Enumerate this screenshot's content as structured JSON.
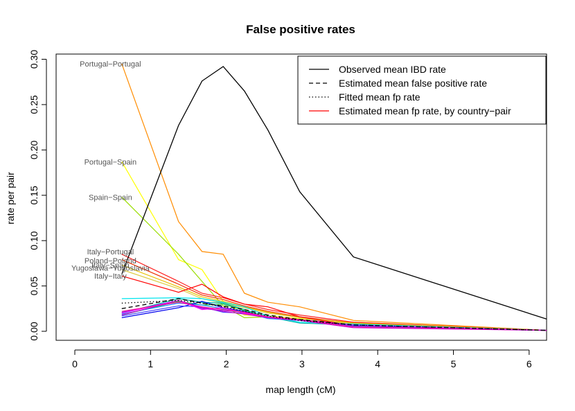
{
  "chart_data": {
    "type": "line",
    "title": "False positive rates",
    "xlabel": "map length (cM)",
    "ylabel": "rate per pair",
    "xlim": [
      0,
      6.25
    ],
    "ylim": [
      0,
      0.3
    ],
    "xticks": [
      "0",
      "1",
      "2",
      "3",
      "4",
      "5",
      "6"
    ],
    "yticks": [
      "0.00",
      "0.05",
      "0.10",
      "0.15",
      "0.20",
      "0.25",
      "0.30"
    ],
    "grid": false,
    "legend_position": "top-right",
    "legend": [
      {
        "label": "Observed mean IBD rate",
        "color": "#000000",
        "dash": "solid"
      },
      {
        "label": "Estimated mean false positive rate",
        "color": "#000000",
        "dash": "dashed"
      },
      {
        "label": "Fitted mean fp rate",
        "color": "#000000",
        "dash": "dotted"
      },
      {
        "label": "Estimated mean fp rate, by country−pair",
        "color": "#ff0000",
        "dash": "solid"
      }
    ],
    "x": [
      0.62,
      1.37,
      1.68,
      1.96,
      2.24,
      2.55,
      2.97,
      3.68,
      6.25
    ],
    "series": [
      {
        "color": "#000000",
        "dash": "solid",
        "values": [
          0.063,
          0.227,
          0.276,
          0.292,
          0.265,
          0.222,
          0.154,
          0.082,
          0.013
        ]
      },
      {
        "color": "#000000",
        "dash": "dashed",
        "values": [
          0.025,
          0.036,
          0.031,
          0.028,
          0.024,
          0.018,
          0.013,
          0.007,
          0.001
        ]
      },
      {
        "color": "#000000",
        "dash": "dotted",
        "values": [
          0.031,
          0.034,
          0.031,
          0.027,
          0.022,
          0.017,
          0.012,
          0.007,
          0.001
        ]
      },
      {
        "color": "#ff8c00",
        "dash": "solid",
        "values": [
          0.295,
          0.121,
          0.088,
          0.085,
          0.042,
          0.032,
          0.027,
          0.012,
          0.001
        ]
      },
      {
        "color": "#ffff00",
        "dash": "solid",
        "values": [
          0.187,
          0.079,
          0.068,
          0.033,
          0.018,
          0.017,
          0.014,
          0.01,
          0.001
        ]
      },
      {
        "color": "#99dd00",
        "dash": "solid",
        "values": [
          0.148,
          0.085,
          0.055,
          0.028,
          0.015,
          0.016,
          0.013,
          0.008,
          0.001
        ]
      },
      {
        "color": "#ff2020",
        "dash": "solid",
        "values": [
          0.085,
          0.055,
          0.042,
          0.037,
          0.03,
          0.024,
          0.018,
          0.01,
          0.001
        ]
      },
      {
        "color": "#ee3300",
        "dash": "solid",
        "values": [
          0.079,
          0.052,
          0.04,
          0.035,
          0.028,
          0.022,
          0.016,
          0.009,
          0.001
        ]
      },
      {
        "color": "#e8c000",
        "dash": "solid",
        "values": [
          0.073,
          0.049,
          0.038,
          0.033,
          0.027,
          0.021,
          0.015,
          0.009,
          0.001
        ]
      },
      {
        "color": "#ddcc44",
        "dash": "solid",
        "values": [
          0.068,
          0.047,
          0.036,
          0.031,
          0.026,
          0.02,
          0.015,
          0.008,
          0.001
        ]
      },
      {
        "color": "#ff0000",
        "dash": "solid",
        "values": [
          0.061,
          0.043,
          0.052,
          0.038,
          0.03,
          0.027,
          0.016,
          0.006,
          0.001
        ]
      },
      {
        "color": "#00e5ee",
        "dash": "solid",
        "values": [
          0.036,
          0.037,
          0.036,
          0.032,
          0.027,
          0.017,
          0.01,
          0.008,
          0.001
        ]
      },
      {
        "color": "#00b3a8",
        "dash": "solid",
        "values": [
          0.02,
          0.036,
          0.032,
          0.031,
          0.024,
          0.016,
          0.009,
          0.007,
          0.001
        ]
      },
      {
        "color": "#20cc40",
        "dash": "solid",
        "values": [
          0.018,
          0.033,
          0.029,
          0.03,
          0.023,
          0.015,
          0.012,
          0.007,
          0.001
        ]
      },
      {
        "color": "#1e90ff",
        "dash": "solid",
        "values": [
          0.019,
          0.031,
          0.029,
          0.025,
          0.021,
          0.014,
          0.012,
          0.006,
          0.001
        ]
      },
      {
        "color": "#0000ee",
        "dash": "solid",
        "values": [
          0.015,
          0.026,
          0.033,
          0.026,
          0.022,
          0.015,
          0.013,
          0.006,
          0.001
        ]
      },
      {
        "color": "#4040ff",
        "dash": "solid",
        "values": [
          0.017,
          0.028,
          0.027,
          0.021,
          0.02,
          0.015,
          0.012,
          0.006,
          0.001
        ]
      },
      {
        "color": "#8a2be2",
        "dash": "solid",
        "values": [
          0.021,
          0.034,
          0.025,
          0.023,
          0.021,
          0.016,
          0.013,
          0.005,
          0.001
        ]
      },
      {
        "color": "#ff00ff",
        "dash": "solid",
        "values": [
          0.02,
          0.034,
          0.024,
          0.026,
          0.02,
          0.016,
          0.013,
          0.007,
          0.001
        ]
      },
      {
        "color": "#ff1493",
        "dash": "solid",
        "values": [
          0.022,
          0.032,
          0.027,
          0.024,
          0.021,
          0.016,
          0.013,
          0.005,
          0.001
        ]
      },
      {
        "color": "#cc00cc",
        "dash": "solid",
        "values": [
          0.018,
          0.034,
          0.026,
          0.022,
          0.019,
          0.015,
          0.012,
          0.004,
          0.001
        ]
      }
    ],
    "annotations": [
      {
        "text": "Portugal−Portugal",
        "x": 0.47,
        "y": 0.295
      },
      {
        "text": "Portugal−Spain",
        "x": 0.47,
        "y": 0.187
      },
      {
        "text": "Spain−Spain",
        "x": 0.47,
        "y": 0.148
      },
      {
        "text": "Italy−Portugal",
        "x": 0.47,
        "y": 0.088
      },
      {
        "text": "Poland−Poland",
        "x": 0.47,
        "y": 0.078
      },
      {
        "text": "Italy−Spain",
        "x": 0.47,
        "y": 0.073
      },
      {
        "text": "Yugoslavia−Yugoslavia",
        "x": 0.47,
        "y": 0.07
      },
      {
        "text": "Italy−Italy",
        "x": 0.47,
        "y": 0.061
      }
    ]
  }
}
